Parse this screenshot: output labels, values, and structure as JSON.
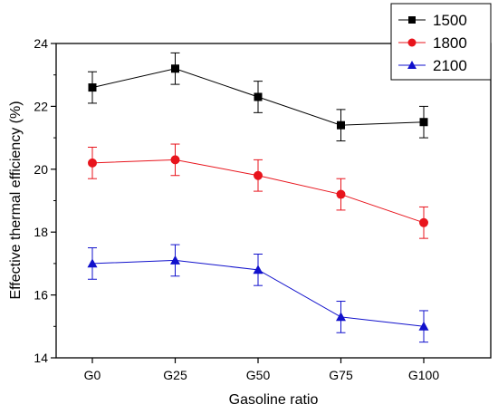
{
  "chart_data": {
    "type": "line",
    "title": "",
    "xlabel": "Gasoline ratio",
    "ylabel": "Effective thermal efficiency (%)",
    "categories": [
      "G0",
      "G25",
      "G50",
      "G75",
      "G100"
    ],
    "ylim": [
      14,
      24
    ],
    "yticks": [
      "14",
      "16",
      "18",
      "20",
      "22",
      "24"
    ],
    "grid": false,
    "legend_position": "top-right",
    "series": [
      {
        "name": "1500",
        "color": "#000000",
        "marker": "square",
        "values": [
          22.6,
          23.2,
          22.3,
          21.4,
          21.5
        ],
        "errors": [
          0.5,
          0.5,
          0.5,
          0.5,
          0.5
        ]
      },
      {
        "name": "1800",
        "color": "#e8141c",
        "marker": "circle",
        "values": [
          20.2,
          20.3,
          19.8,
          19.2,
          18.3
        ],
        "errors": [
          0.5,
          0.5,
          0.5,
          0.5,
          0.5
        ]
      },
      {
        "name": "2100",
        "color": "#1111cc",
        "marker": "triangle",
        "values": [
          17.0,
          17.1,
          16.8,
          15.3,
          15.0
        ],
        "errors": [
          0.5,
          0.5,
          0.5,
          0.5,
          0.5
        ]
      }
    ]
  }
}
